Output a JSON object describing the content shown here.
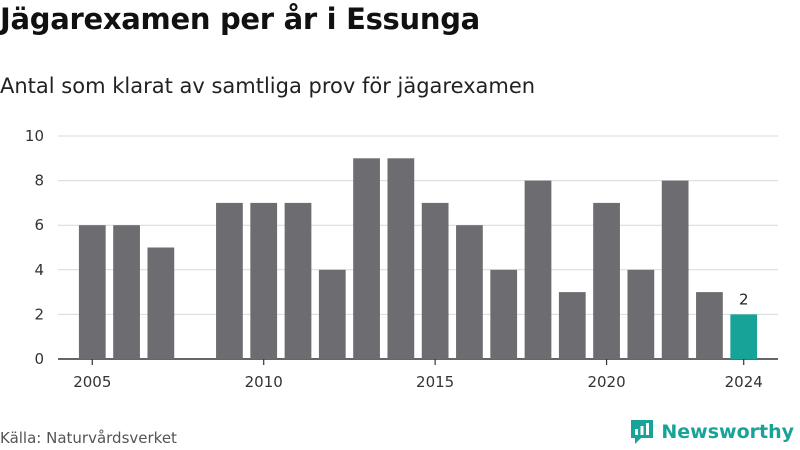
{
  "header": {
    "title": "Jägarexamen per år i Essunga",
    "subtitle": "Antal som klarat av samtliga prov för jägarexamen"
  },
  "footer": {
    "source": "Källa: Naturvårdsverket",
    "brand": "Newsworthy"
  },
  "colors": {
    "bar": "#6d6c70",
    "highlight": "#17a398",
    "grid": "#d9d9d9",
    "brand": "#17a398"
  },
  "chart_data": {
    "type": "bar",
    "title": "Jägarexamen per år i Essunga",
    "subtitle": "Antal som klarat av samtliga prov för jägarexamen",
    "xlabel": "",
    "ylabel": "",
    "ylim": [
      0,
      10
    ],
    "yticks": [
      0,
      2,
      4,
      6,
      8,
      10
    ],
    "xticks": [
      2005,
      2010,
      2015,
      2020,
      2024
    ],
    "grid": true,
    "x": [
      2005,
      2006,
      2007,
      2008,
      2009,
      2010,
      2011,
      2012,
      2013,
      2014,
      2015,
      2016,
      2017,
      2018,
      2019,
      2020,
      2021,
      2022,
      2023,
      2024
    ],
    "values": [
      6,
      6,
      5,
      0,
      7,
      7,
      7,
      4,
      9,
      9,
      7,
      6,
      4,
      8,
      3,
      7,
      4,
      8,
      3,
      2
    ],
    "highlight": 2024,
    "annotations": [
      {
        "x": 2024,
        "text": "2"
      }
    ]
  }
}
